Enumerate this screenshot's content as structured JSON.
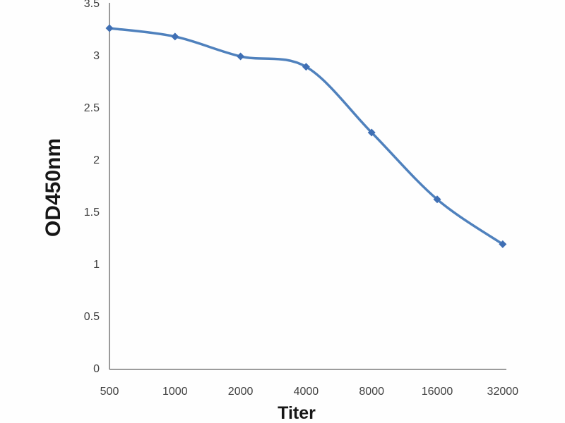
{
  "figure": {
    "background": "#fefefe"
  },
  "chart_data": {
    "type": "line",
    "title": "",
    "xlabel": "Titer",
    "ylabel": "OD450nm",
    "categories": [
      "500",
      "1000",
      "2000",
      "4000",
      "8000",
      "16000",
      "32000"
    ],
    "series": [
      {
        "name": "OD450nm",
        "values": [
          3.27,
          3.19,
          3.0,
          2.9,
          2.27,
          1.63,
          1.2
        ],
        "color": "#4f81bd",
        "marker": "diamond",
        "marker_color": "#3f6fb4",
        "smooth": true,
        "line_width": 3.5
      }
    ],
    "ylim": [
      0,
      3.5
    ],
    "ytick_labels": [
      "0",
      "0.5",
      "1",
      "1.5",
      "2",
      "2.5",
      "3",
      "3.5"
    ],
    "ytick_values": [
      0,
      0.5,
      1,
      1.5,
      2,
      2.5,
      3,
      3.5
    ],
    "grid": false,
    "legend": "none",
    "axis_color": "#8e8e8e",
    "tick_label_color": "#404040"
  }
}
